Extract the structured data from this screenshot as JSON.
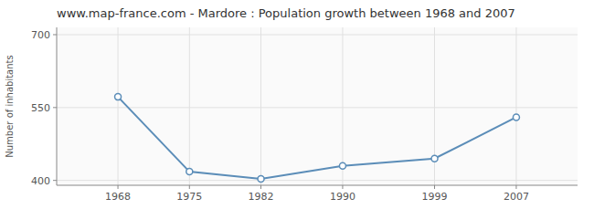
{
  "chart_data": {
    "type": "line",
    "title": "www.map-france.com - Mardore : Population growth between 1968 and 2007",
    "ylabel": "Number of inhabitants",
    "x": [
      1968,
      1975,
      1982,
      1990,
      1999,
      2007
    ],
    "values": [
      572,
      418,
      403,
      430,
      445,
      530
    ],
    "xlim": [
      1962,
      2013
    ],
    "xticks": [
      1968,
      1975,
      1982,
      1990,
      1999,
      2007
    ],
    "ylim": [
      390,
      715
    ],
    "yticks": [
      400,
      550,
      700
    ],
    "color": "#5b8db8",
    "marker": "circle",
    "grid": true
  }
}
